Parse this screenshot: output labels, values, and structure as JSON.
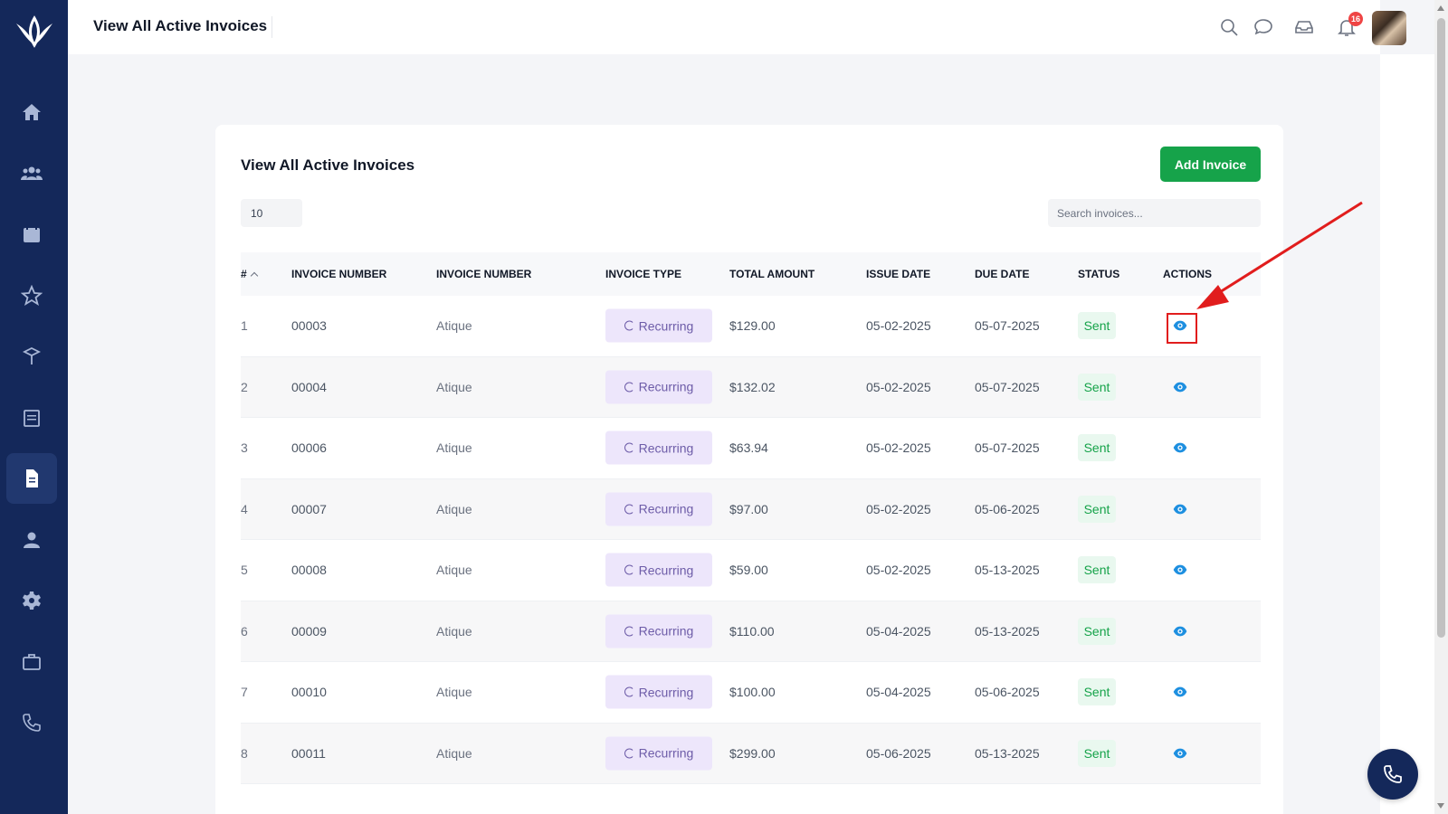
{
  "header": {
    "title": "View All Active Invoices",
    "notification_count": "16"
  },
  "sidebar": {
    "items": [
      {
        "icon": "home-icon"
      },
      {
        "icon": "users-icon"
      },
      {
        "icon": "calendar-icon"
      },
      {
        "icon": "star-icon"
      },
      {
        "icon": "box-icon"
      },
      {
        "icon": "schedule-icon"
      },
      {
        "icon": "invoice-icon",
        "active": true
      },
      {
        "icon": "user-icon"
      },
      {
        "icon": "gear-icon"
      },
      {
        "icon": "briefcase-icon"
      },
      {
        "icon": "phone-icon"
      }
    ]
  },
  "card": {
    "title": "View All Active Invoices",
    "add_button": "Add Invoice",
    "page_size": "10",
    "search_placeholder": "Search invoices..."
  },
  "table": {
    "columns": [
      "#",
      "INVOICE NUMBER",
      "INVOICE NUMBER",
      "INVOICE TYPE",
      "TOTAL AMOUNT",
      "ISSUE DATE",
      "DUE DATE",
      "STATUS",
      "ACTIONS"
    ],
    "rows": [
      {
        "n": "1",
        "invoice": "00003",
        "name": "Atique",
        "type": "Recurring",
        "amount": "$129.00",
        "issue": "05-02-2025",
        "due": "05-07-2025",
        "status": "Sent"
      },
      {
        "n": "2",
        "invoice": "00004",
        "name": "Atique",
        "type": "Recurring",
        "amount": "$132.02",
        "issue": "05-02-2025",
        "due": "05-07-2025",
        "status": "Sent"
      },
      {
        "n": "3",
        "invoice": "00006",
        "name": "Atique",
        "type": "Recurring",
        "amount": "$63.94",
        "issue": "05-02-2025",
        "due": "05-07-2025",
        "status": "Sent"
      },
      {
        "n": "4",
        "invoice": "00007",
        "name": "Atique",
        "type": "Recurring",
        "amount": "$97.00",
        "issue": "05-02-2025",
        "due": "05-06-2025",
        "status": "Sent"
      },
      {
        "n": "5",
        "invoice": "00008",
        "name": "Atique",
        "type": "Recurring",
        "amount": "$59.00",
        "issue": "05-02-2025",
        "due": "05-13-2025",
        "status": "Sent"
      },
      {
        "n": "6",
        "invoice": "00009",
        "name": "Atique",
        "type": "Recurring",
        "amount": "$110.00",
        "issue": "05-04-2025",
        "due": "05-13-2025",
        "status": "Sent"
      },
      {
        "n": "7",
        "invoice": "00010",
        "name": "Atique",
        "type": "Recurring",
        "amount": "$100.00",
        "issue": "05-04-2025",
        "due": "05-06-2025",
        "status": "Sent"
      },
      {
        "n": "8",
        "invoice": "00011",
        "name": "Atique",
        "type": "Recurring",
        "amount": "$299.00",
        "issue": "05-06-2025",
        "due": "05-13-2025",
        "status": "Sent"
      }
    ]
  },
  "colors": {
    "sidebar": "#14285a",
    "accent_green": "#16a34a",
    "pill_bg": "#ede6fb",
    "eye_blue": "#1d8fe0",
    "annotation_red": "#e11d1d"
  }
}
